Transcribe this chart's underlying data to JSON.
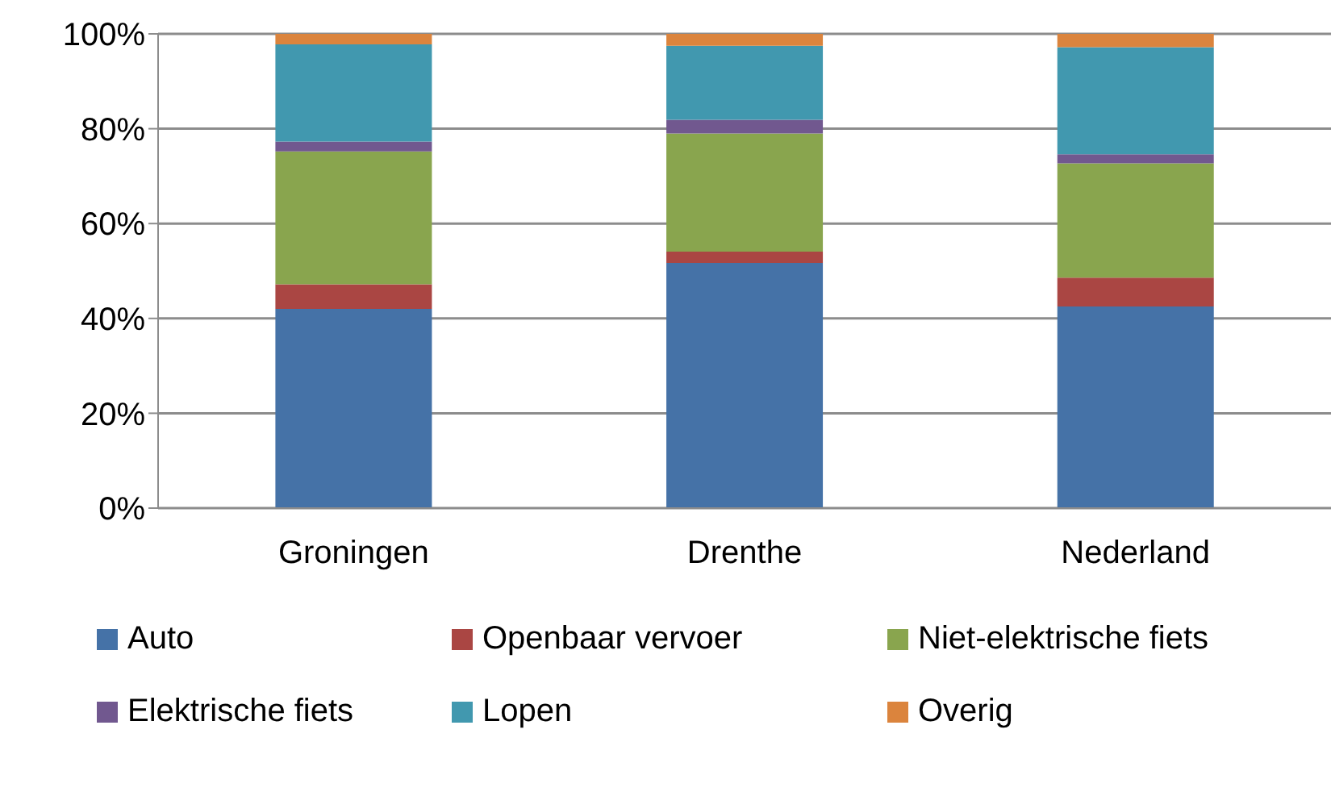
{
  "chart_data": {
    "type": "bar",
    "stacked": true,
    "categories": [
      "Groningen",
      "Drenthe",
      "Nederland"
    ],
    "series": [
      {
        "name": "Auto",
        "color": "#4572a7",
        "values": [
          42,
          51.7,
          42.5
        ]
      },
      {
        "name": "Openbaar vervoer",
        "color": "#aa4643",
        "values": [
          5.2,
          2.4,
          6.1
        ]
      },
      {
        "name": "Niet-elektrische fiets",
        "color": "#89a54e",
        "values": [
          28,
          24.9,
          24.1
        ]
      },
      {
        "name": "Elektrische fiets",
        "color": "#71588f",
        "values": [
          2.1,
          2.9,
          1.9
        ]
      },
      {
        "name": "Lopen",
        "color": "#4198af",
        "values": [
          20.5,
          15.6,
          22.6
        ]
      },
      {
        "name": "Overig",
        "color": "#db843d",
        "values": [
          2.2,
          2.5,
          2.8
        ]
      }
    ],
    "ylim": [
      0,
      100
    ],
    "yticks": [
      {
        "value": 0,
        "label": "0%"
      },
      {
        "value": 20,
        "label": "20%"
      },
      {
        "value": 40,
        "label": "40%"
      },
      {
        "value": 60,
        "label": "60%"
      },
      {
        "value": 80,
        "label": "80%"
      },
      {
        "value": 100,
        "label": "100%"
      }
    ],
    "grid": "y",
    "legend": "bottom"
  }
}
